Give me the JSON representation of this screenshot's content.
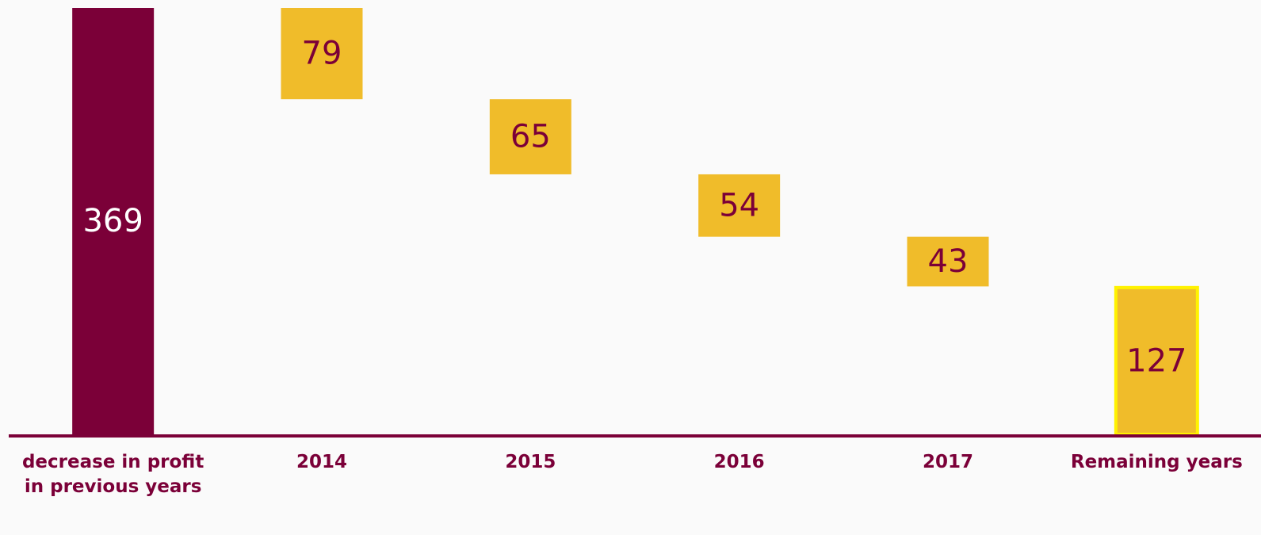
{
  "chart_data": {
    "type": "waterfall",
    "categories": [
      "decrease in profit in previous years",
      "2014",
      "2015",
      "2016",
      "2017",
      "Remaining years"
    ],
    "values": [
      369,
      79,
      65,
      54,
      43,
      127
    ],
    "colors": [
      "#7b0038",
      "#f0bc2a",
      "#f0bc2a",
      "#f0bc2a",
      "#f0bc2a",
      "#f0bc2a"
    ],
    "label_colors": [
      "#ffffff",
      "#7b0038",
      "#7b0038",
      "#7b0038",
      "#7b0038",
      "#7b0038"
    ],
    "highlight_color": "#fff200",
    "axis_color": "#7b0038"
  }
}
